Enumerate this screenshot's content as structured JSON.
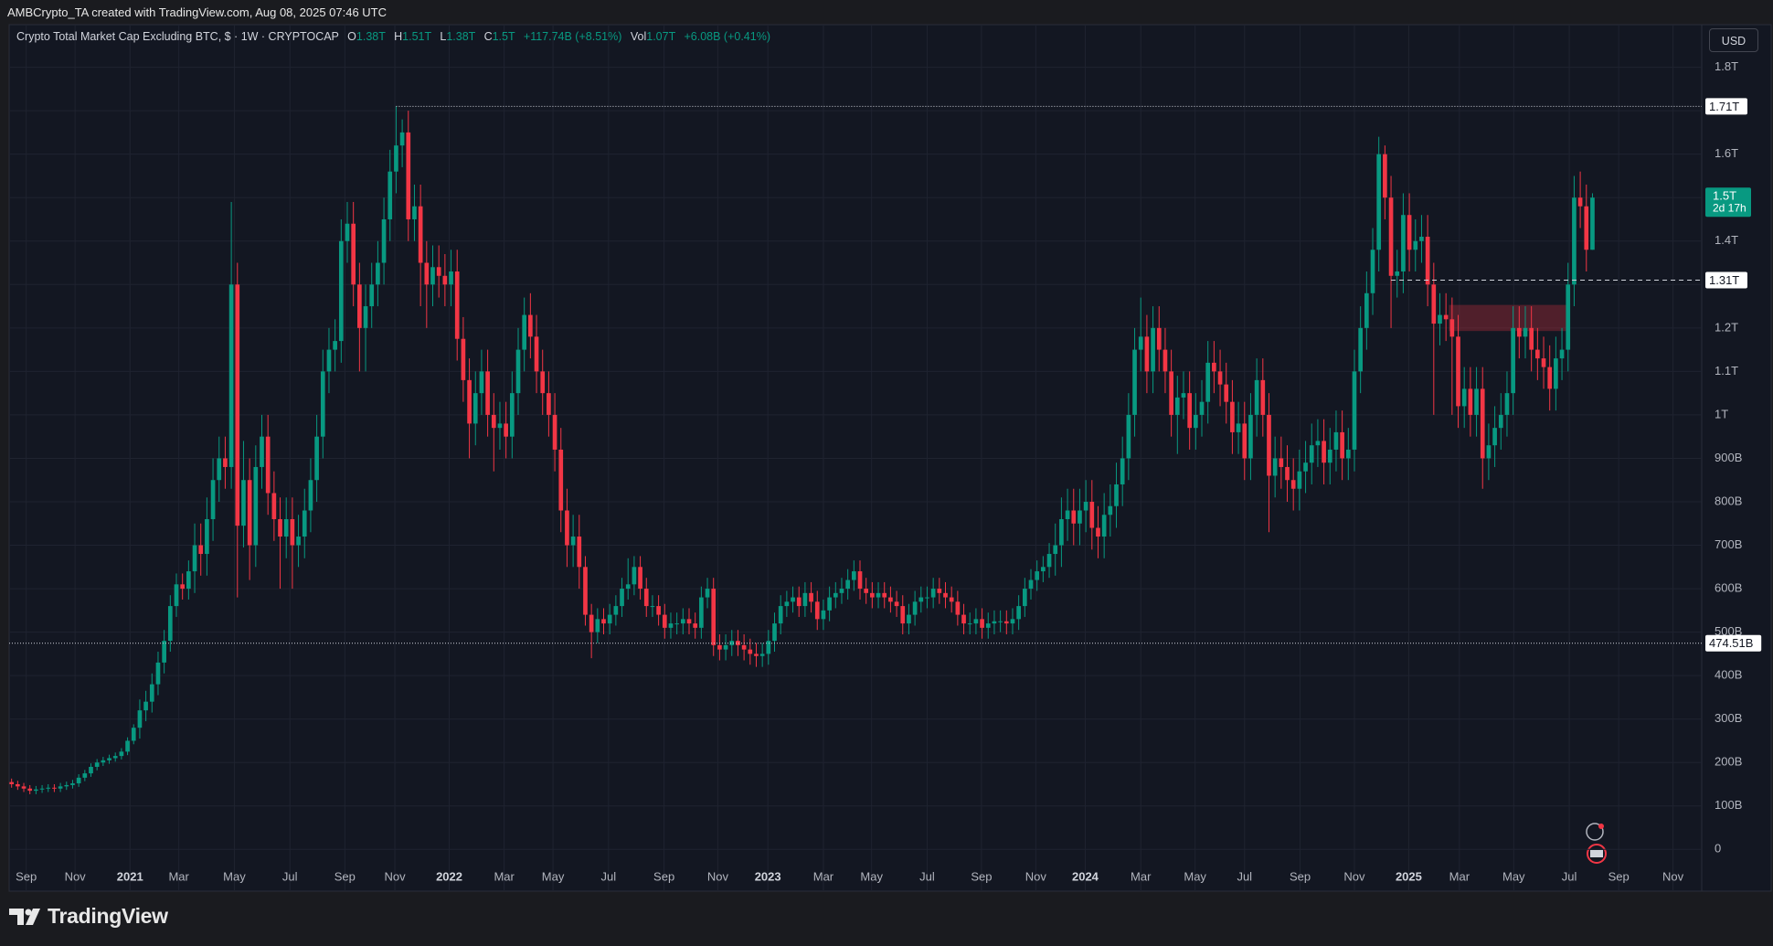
{
  "header": {
    "attribution": "AMBCrypto_TA created with TradingView.com, Aug 08, 2025 07:46 UTC"
  },
  "chart_data": {
    "type": "candlestick",
    "title": "Crypto Total Market Cap Excluding BTC, $ · 1W · CRYPTOCAP",
    "legend": {
      "o_label": "O",
      "o": "1.38T",
      "h_label": "H",
      "h": "1.51T",
      "l_label": "L",
      "l": "1.38T",
      "c_label": "C",
      "c": "1.5T",
      "change": "+117.74B (+8.51%)",
      "vol_label": "Vol",
      "vol": "1.07T",
      "vol_change": "+6.08B (+0.41%)"
    },
    "currency": "USD",
    "up_color": "#089981",
    "down_color": "#f23645",
    "grid": true,
    "open": [
      155,
      150,
      145,
      140,
      135,
      138,
      140,
      142,
      140,
      145,
      148,
      152,
      165,
      175,
      190,
      200,
      205,
      210,
      215,
      225,
      250,
      280,
      320,
      340,
      380,
      430,
      480,
      560,
      610,
      600,
      640,
      700,
      680,
      760,
      850,
      900,
      880,
      1300,
      745,
      850,
      700,
      880,
      950,
      820,
      760,
      720,
      760,
      700,
      720,
      780,
      850,
      950,
      1100,
      1150,
      1170,
      1400,
      1440,
      1300,
      1200,
      1250,
      1300,
      1350,
      1450,
      1560,
      1620,
      1650,
      1450,
      1480,
      1350,
      1300,
      1340,
      1320,
      1300,
      1330,
      1175,
      1080,
      980,
      1050,
      1100,
      1000,
      970,
      980,
      950,
      1050,
      1150,
      1230,
      1180,
      1100,
      1050,
      1000,
      920,
      780,
      700,
      720,
      650,
      540,
      500,
      530,
      520,
      540,
      560,
      600,
      610,
      650,
      600,
      560,
      560,
      540,
      510,
      520,
      520,
      530,
      520,
      510,
      580,
      600,
      470,
      460,
      470,
      480,
      470,
      460,
      450,
      445,
      450,
      480,
      520,
      560,
      570,
      580,
      560,
      590,
      570,
      530,
      550,
      580,
      590,
      600,
      620,
      640,
      600,
      590,
      580,
      590,
      580,
      570,
      560,
      520,
      540,
      570,
      580,
      580,
      600,
      590,
      580,
      570,
      540,
      520,
      520,
      530,
      510,
      520,
      525,
      525,
      520,
      530,
      560,
      600,
      620,
      640,
      650,
      680,
      700,
      760,
      780,
      750,
      780,
      800,
      740,
      720,
      770,
      790,
      840,
      900,
      1000,
      1150,
      1180,
      1100,
      1200,
      1150,
      1100,
      1000,
      1040,
      1050,
      970,
      1000,
      1030,
      1120,
      1100,
      1070,
      1030,
      960,
      980,
      900,
      1000,
      1080,
      1000,
      860,
      900,
      880,
      850,
      830,
      870,
      890,
      930,
      940,
      890,
      920,
      960,
      900,
      920,
      1100,
      1200,
      1280,
      1380,
      1600,
      1500,
      1320,
      1330,
      1460,
      1380,
      1400,
      1410,
      1300,
      1210,
      1230,
      1220,
      1180,
      1020,
      1060,
      1000,
      1060,
      900,
      930,
      970,
      1000,
      1050,
      1200,
      1180,
      1200,
      1150,
      1130,
      1110,
      1060,
      1130,
      1150,
      1300,
      1500,
      1480,
      1380
    ],
    "high": [
      163,
      158,
      153,
      148,
      146,
      148,
      150,
      150,
      153,
      156,
      160,
      173,
      183,
      198,
      208,
      213,
      218,
      223,
      233,
      258,
      288,
      345,
      365,
      405,
      455,
      505,
      585,
      635,
      635,
      665,
      750,
      750,
      810,
      900,
      950,
      950,
      1490,
      1350,
      940,
      900,
      930,
      1000,
      1000,
      870,
      810,
      810,
      810,
      770,
      830,
      900,
      1000,
      1150,
      1200,
      1220,
      1450,
      1490,
      1490,
      1350,
      1300,
      1350,
      1400,
      1500,
      1610,
      1710,
      1680,
      1700,
      1530,
      1530,
      1400,
      1390,
      1390,
      1370,
      1380,
      1380,
      1225,
      1130,
      1100,
      1150,
      1150,
      1050,
      1030,
      1030,
      1100,
      1200,
      1270,
      1280,
      1230,
      1150,
      1100,
      1050,
      970,
      830,
      770,
      770,
      675,
      565,
      555,
      555,
      565,
      585,
      625,
      670,
      675,
      675,
      625,
      585,
      585,
      565,
      545,
      545,
      555,
      555,
      545,
      605,
      625,
      625,
      495,
      495,
      505,
      505,
      495,
      485,
      475,
      475,
      505,
      545,
      585,
      595,
      605,
      605,
      615,
      615,
      595,
      575,
      605,
      615,
      625,
      645,
      665,
      665,
      625,
      615,
      615,
      615,
      605,
      595,
      585,
      565,
      595,
      605,
      605,
      625,
      625,
      615,
      605,
      595,
      565,
      545,
      555,
      555,
      545,
      550,
      550,
      550,
      555,
      585,
      625,
      645,
      665,
      675,
      705,
      750,
      810,
      830,
      830,
      830,
      850,
      850,
      790,
      820,
      840,
      890,
      950,
      1050,
      1200,
      1270,
      1230,
      1250,
      1250,
      1200,
      1150,
      1090,
      1100,
      1100,
      1050,
      1080,
      1170,
      1170,
      1150,
      1120,
      1080,
      1030,
      1030,
      1050,
      1130,
      1130,
      1050,
      950,
      950,
      930,
      900,
      920,
      940,
      980,
      990,
      990,
      970,
      1010,
      1010,
      970,
      1150,
      1250,
      1330,
      1430,
      1640,
      1620,
      1550,
      1380,
      1510,
      1510,
      1450,
      1460,
      1460,
      1350,
      1280,
      1280,
      1270,
      1230,
      1110,
      1110,
      1110,
      1110,
      980,
      1020,
      1050,
      1100,
      1250,
      1250,
      1250,
      1250,
      1200,
      1180,
      1160,
      1180,
      1200,
      1350,
      1550,
      1560,
      1530,
      1510
    ],
    "low": [
      142,
      137,
      132,
      127,
      127,
      130,
      132,
      132,
      132,
      137,
      140,
      144,
      157,
      167,
      182,
      192,
      197,
      202,
      207,
      217,
      242,
      255,
      295,
      315,
      355,
      405,
      455,
      535,
      575,
      575,
      590,
      630,
      630,
      710,
      800,
      830,
      830,
      580,
      695,
      620,
      650,
      830,
      770,
      710,
      600,
      670,
      600,
      650,
      670,
      730,
      800,
      900,
      1050,
      1100,
      1120,
      1350,
      1250,
      1100,
      1100,
      1200,
      1250,
      1300,
      1400,
      1510,
      1570,
      1400,
      1400,
      1250,
      1200,
      1250,
      1270,
      1250,
      1250,
      1125,
      1030,
      900,
      930,
      1000,
      950,
      870,
      920,
      900,
      900,
      1000,
      1100,
      1130,
      1050,
      1000,
      950,
      870,
      730,
      650,
      650,
      600,
      515,
      440,
      475,
      495,
      495,
      515,
      535,
      575,
      585,
      575,
      535,
      535,
      515,
      485,
      485,
      495,
      495,
      495,
      485,
      485,
      555,
      445,
      435,
      435,
      445,
      445,
      435,
      425,
      420,
      420,
      425,
      455,
      495,
      535,
      545,
      535,
      535,
      545,
      505,
      505,
      525,
      555,
      565,
      575,
      595,
      575,
      565,
      555,
      555,
      555,
      545,
      535,
      495,
      495,
      515,
      545,
      555,
      555,
      565,
      555,
      545,
      515,
      495,
      495,
      495,
      485,
      485,
      495,
      500,
      495,
      495,
      505,
      535,
      575,
      595,
      615,
      625,
      630,
      650,
      710,
      700,
      700,
      730,
      690,
      670,
      670,
      720,
      740,
      790,
      850,
      950,
      1100,
      1050,
      1050,
      1100,
      1050,
      950,
      910,
      990,
      920,
      920,
      950,
      980,
      1050,
      1020,
      980,
      910,
      910,
      850,
      850,
      950,
      950,
      730,
      810,
      830,
      800,
      780,
      780,
      820,
      840,
      880,
      840,
      840,
      870,
      850,
      850,
      870,
      1050,
      1150,
      1230,
      1330,
      1450,
      1200,
      1270,
      1280,
      1330,
      1330,
      1350,
      1250,
      1000,
      1160,
      1170,
      1000,
      970,
      970,
      950,
      950,
      830,
      850,
      880,
      920,
      950,
      1000,
      1130,
      1130,
      1100,
      1080,
      1060,
      1010,
      1010,
      1080,
      1100,
      1250,
      1430,
      1330,
      1380
    ],
    "close": [
      150,
      145,
      140,
      135,
      138,
      140,
      142,
      140,
      145,
      148,
      152,
      165,
      175,
      190,
      200,
      205,
      210,
      215,
      225,
      250,
      280,
      320,
      340,
      380,
      430,
      480,
      560,
      610,
      600,
      640,
      700,
      680,
      760,
      850,
      900,
      880,
      1300,
      745,
      850,
      700,
      880,
      950,
      820,
      760,
      720,
      760,
      700,
      720,
      780,
      850,
      950,
      1100,
      1150,
      1170,
      1400,
      1440,
      1300,
      1200,
      1250,
      1300,
      1350,
      1450,
      1560,
      1620,
      1650,
      1450,
      1480,
      1350,
      1300,
      1340,
      1320,
      1300,
      1330,
      1175,
      1080,
      980,
      1050,
      1100,
      1000,
      970,
      980,
      950,
      1050,
      1150,
      1230,
      1180,
      1100,
      1050,
      1000,
      920,
      780,
      700,
      720,
      650,
      540,
      500,
      530,
      520,
      540,
      560,
      600,
      610,
      650,
      600,
      560,
      560,
      540,
      510,
      520,
      520,
      530,
      520,
      510,
      580,
      600,
      470,
      460,
      470,
      480,
      470,
      460,
      450,
      445,
      450,
      480,
      520,
      560,
      570,
      580,
      560,
      590,
      570,
      530,
      550,
      580,
      590,
      600,
      620,
      640,
      600,
      590,
      580,
      590,
      580,
      570,
      560,
      520,
      540,
      570,
      580,
      580,
      600,
      590,
      580,
      570,
      540,
      520,
      520,
      530,
      510,
      520,
      525,
      525,
      520,
      530,
      560,
      600,
      620,
      640,
      650,
      680,
      700,
      760,
      780,
      750,
      780,
      800,
      740,
      720,
      770,
      790,
      840,
      900,
      1000,
      1150,
      1180,
      1100,
      1200,
      1150,
      1100,
      1000,
      1040,
      1050,
      970,
      1000,
      1030,
      1120,
      1100,
      1070,
      1030,
      960,
      980,
      900,
      1000,
      1080,
      1000,
      860,
      900,
      880,
      850,
      830,
      870,
      890,
      930,
      940,
      890,
      920,
      960,
      900,
      920,
      1100,
      1200,
      1280,
      1380,
      1600,
      1500,
      1320,
      1330,
      1460,
      1380,
      1400,
      1410,
      1300,
      1210,
      1230,
      1220,
      1180,
      1020,
      1060,
      1000,
      1060,
      900,
      930,
      970,
      1000,
      1050,
      1200,
      1180,
      1200,
      1150,
      1130,
      1110,
      1060,
      1130,
      1150,
      1300,
      1500,
      1480,
      1380,
      1500
    ],
    "xlim": [
      -0.4,
      276.9
    ],
    "xticks": [
      {
        "value": 2.4,
        "label": "Sep"
      },
      {
        "value": 10.4,
        "label": "Nov"
      },
      {
        "value": 19.4,
        "label": "2021"
      },
      {
        "value": 27.4,
        "label": "Mar"
      },
      {
        "value": 36.5,
        "label": "May"
      },
      {
        "value": 45.6,
        "label": "Jul"
      },
      {
        "value": 54.6,
        "label": "Sep"
      },
      {
        "value": 62.8,
        "label": "Nov"
      },
      {
        "value": 71.7,
        "label": "2022"
      },
      {
        "value": 80.7,
        "label": "Mar"
      },
      {
        "value": 88.7,
        "label": "May"
      },
      {
        "value": 97.8,
        "label": "Jul"
      },
      {
        "value": 106.9,
        "label": "Sep"
      },
      {
        "value": 115.7,
        "label": "Nov"
      },
      {
        "value": 123.9,
        "label": "2023"
      },
      {
        "value": 133,
        "label": "Mar"
      },
      {
        "value": 140.9,
        "label": "May"
      },
      {
        "value": 150,
        "label": "Jul"
      },
      {
        "value": 158.9,
        "label": "Sep"
      },
      {
        "value": 167.8,
        "label": "Nov"
      },
      {
        "value": 175.9,
        "label": "2024"
      },
      {
        "value": 185,
        "label": "Mar"
      },
      {
        "value": 193.9,
        "label": "May"
      },
      {
        "value": 202,
        "label": "Jul"
      },
      {
        "value": 211.1,
        "label": "Sep"
      },
      {
        "value": 220,
        "label": "Nov"
      },
      {
        "value": 228.9,
        "label": "2025"
      },
      {
        "value": 237.2,
        "label": "Mar"
      },
      {
        "value": 246.1,
        "label": "May"
      },
      {
        "value": 255.2,
        "label": "Jul"
      },
      {
        "value": 263.3,
        "label": "Sep"
      },
      {
        "value": 272.2,
        "label": "Nov"
      }
    ],
    "ylim": [
      -94,
      1898
    ],
    "yticks": [
      0,
      {
        "value": 100,
        "label": "100B"
      },
      {
        "value": 200,
        "label": "200B"
      },
      {
        "value": 300,
        "label": "300B"
      },
      {
        "value": 400,
        "label": "400B"
      },
      {
        "value": 500,
        "label": "500B"
      },
      {
        "value": 600,
        "label": "600B"
      },
      {
        "value": 700,
        "label": "700B"
      },
      {
        "value": 800,
        "label": "800B"
      },
      {
        "value": 900,
        "label": "900B"
      },
      {
        "value": 1000,
        "label": "1T"
      },
      {
        "value": 1100,
        "label": "1.1T"
      },
      {
        "value": 1200,
        "label": "1.2T"
      },
      {
        "value": 1300,
        "label": "1.3T"
      },
      {
        "value": 1400,
        "label": "1.4T"
      },
      {
        "value": 1500,
        "label": "1.5T"
      },
      {
        "value": 1600,
        "label": "1.6T"
      },
      {
        "value": 1700,
        "label": "1.7T"
      },
      {
        "value": 1800,
        "label": "1.8T"
      }
    ],
    "price_lines": [
      {
        "value": 1710,
        "label": "1.71T",
        "style": "dotted",
        "start": 63
      },
      {
        "value": 1310,
        "label": "1.31T",
        "style": "dashed",
        "start": 226
      },
      {
        "value": 474.51,
        "label": "474.51B",
        "style": "dotted"
      }
    ],
    "zone": {
      "x": [
        235.5,
        255
      ],
      "y": [
        1193,
        1253
      ],
      "color": "#f23645"
    },
    "last_price": {
      "value": 1500,
      "label": "1.5T",
      "countdown": "2d 17h"
    }
  },
  "footer": {
    "brand": "TradingView"
  }
}
